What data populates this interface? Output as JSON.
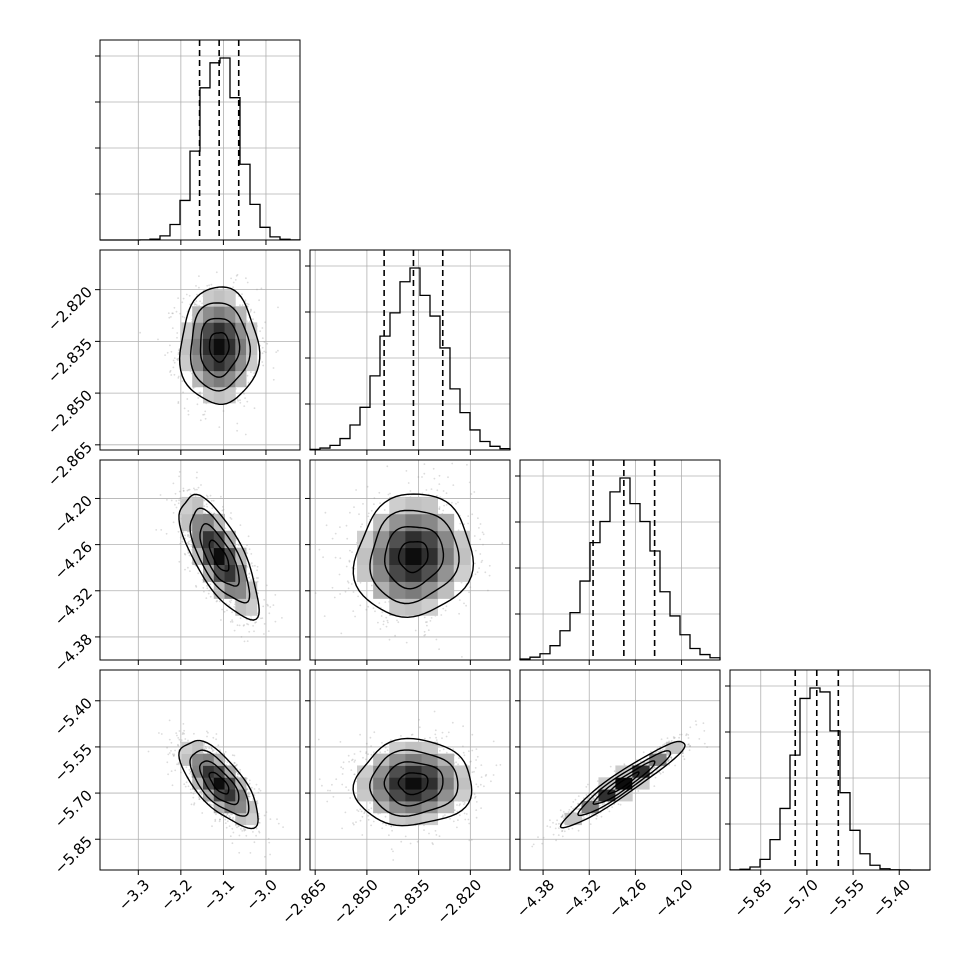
{
  "chart_data": {
    "type": "corner",
    "parameters": [
      {
        "mean": -3.11,
        "sd": 0.046,
        "quantiles": [
          -3.156,
          -3.11,
          -3.064
        ],
        "range": [
          -3.39,
          -2.92
        ],
        "ticks": [
          -3.3,
          -3.2,
          -3.1,
          -3.0
        ],
        "tick_labels": [
          "−3.3",
          "−3.2",
          "−3.1",
          "−3.0"
        ]
      },
      {
        "mean": -2.8365,
        "sd": 0.0085,
        "quantiles": [
          -2.845,
          -2.8365,
          -2.828
        ],
        "range": [
          -2.8665,
          -2.8085
        ],
        "ticks": [
          -2.865,
          -2.85,
          -2.835,
          -2.82
        ],
        "tick_labels": [
          "−2.865",
          "−2.850",
          "−2.835",
          "−2.820"
        ]
      },
      {
        "mean": -4.275,
        "sd": 0.04,
        "quantiles": [
          -4.315,
          -4.275,
          -4.235
        ],
        "range": [
          -4.41,
          -4.15
        ],
        "ticks": [
          -4.38,
          -4.32,
          -4.26,
          -4.2
        ],
        "tick_labels": [
          "−4.38",
          "−4.32",
          "−4.26",
          "−4.20"
        ]
      },
      {
        "mean": -5.668,
        "sd": 0.07,
        "quantiles": [
          -5.738,
          -5.668,
          -5.598
        ],
        "range": [
          -5.95,
          -5.3
        ],
        "ticks": [
          -5.85,
          -5.7,
          -5.55,
          -5.4
        ],
        "tick_labels": [
          "−5.85",
          "−5.70",
          "−5.55",
          "−5.40"
        ]
      }
    ],
    "correlations": [
      [
        1.0,
        0.0,
        -0.72,
        -0.7
      ],
      [
        0.0,
        1.0,
        0.08,
        0.04
      ],
      [
        -0.72,
        0.08,
        1.0,
        0.95
      ],
      [
        -0.7,
        0.04,
        0.95,
        1.0
      ]
    ],
    "histogram_bins": 20,
    "contour_levels_sigma": [
      0.5,
      1.0,
      1.5,
      2.0
    ],
    "grid": true,
    "colors": {
      "line": "#000000",
      "grid": "#b0b0b0",
      "scatter": "#9a9a9a"
    }
  }
}
